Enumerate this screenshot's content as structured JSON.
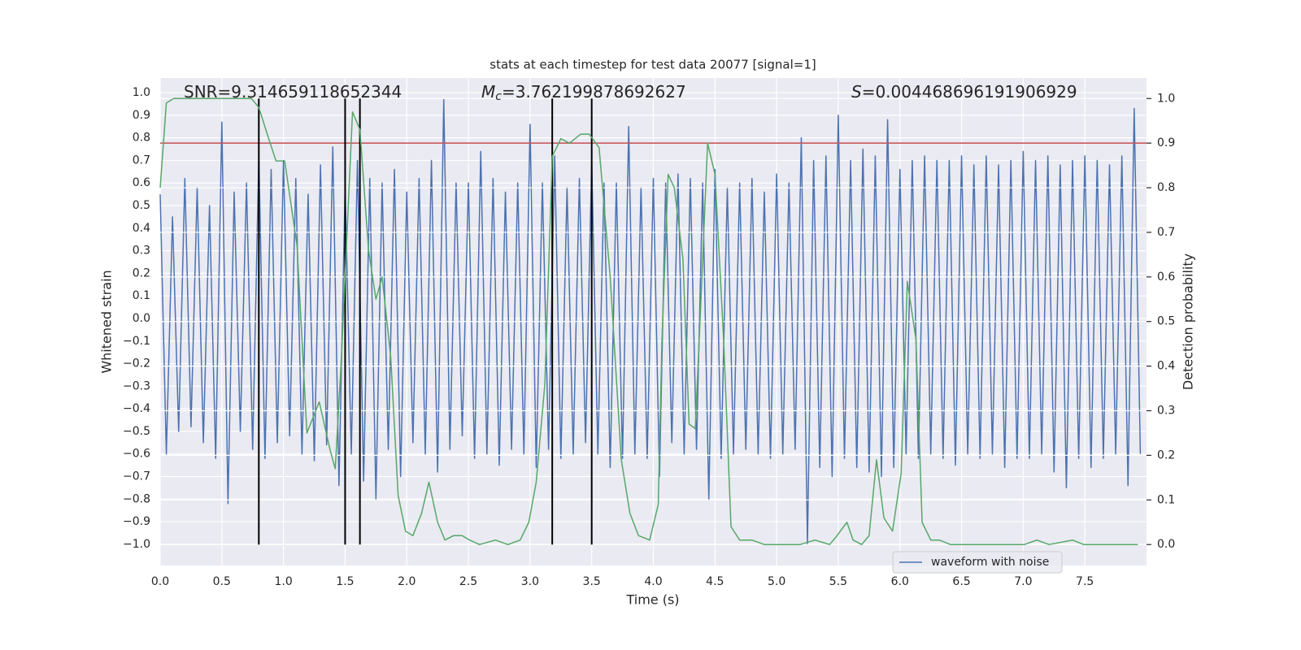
{
  "chart_data": {
    "type": "line",
    "title": "stats at each timestep for test data 20077 [signal=1]",
    "xlabel": "Time (s)",
    "ylabel": "Whitened strain",
    "y2label": "Detection probability",
    "xlim": [
      0,
      8.0
    ],
    "ylim": [
      -1.094,
      1.065
    ],
    "y2lim": [
      -0.047,
      1.046
    ],
    "xticks": [
      {
        "value": 0,
        "label": "0.0"
      },
      {
        "value": 0.5,
        "label": "0.5"
      },
      {
        "value": 1,
        "label": "1.0"
      },
      {
        "value": 1.5,
        "label": "1.5"
      },
      {
        "value": 2,
        "label": "2.0"
      },
      {
        "value": 2.5,
        "label": "2.5"
      },
      {
        "value": 3,
        "label": "3.0"
      },
      {
        "value": 3.5,
        "label": "3.5"
      },
      {
        "value": 4,
        "label": "4.0"
      },
      {
        "value": 4.5,
        "label": "4.5"
      },
      {
        "value": 5,
        "label": "5.0"
      },
      {
        "value": 5.5,
        "label": "5.5"
      },
      {
        "value": 6,
        "label": "6.0"
      },
      {
        "value": 6.5,
        "label": "6.5"
      },
      {
        "value": 7,
        "label": "7.0"
      },
      {
        "value": 7.5,
        "label": "7.5"
      }
    ],
    "yticks": [
      {
        "value": -1,
        "label": "−1.0"
      },
      {
        "value": -0.9,
        "label": "−0.9"
      },
      {
        "value": -0.8,
        "label": "−0.8"
      },
      {
        "value": -0.7,
        "label": "−0.7"
      },
      {
        "value": -0.6,
        "label": "−0.6"
      },
      {
        "value": -0.5,
        "label": "−0.5"
      },
      {
        "value": -0.4,
        "label": "−0.4"
      },
      {
        "value": -0.3,
        "label": "−0.3"
      },
      {
        "value": -0.2,
        "label": "−0.2"
      },
      {
        "value": -0.1,
        "label": "−0.1"
      },
      {
        "value": 0,
        "label": "0.0"
      },
      {
        "value": 0.1,
        "label": "0.1"
      },
      {
        "value": 0.2,
        "label": "0.2"
      },
      {
        "value": 0.3,
        "label": "0.3"
      },
      {
        "value": 0.4,
        "label": "0.4"
      },
      {
        "value": 0.5,
        "label": "0.5"
      },
      {
        "value": 0.6,
        "label": "0.6"
      },
      {
        "value": 0.7,
        "label": "0.7"
      },
      {
        "value": 0.8,
        "label": "0.8"
      },
      {
        "value": 0.9,
        "label": "0.9"
      },
      {
        "value": 1,
        "label": "1.0"
      }
    ],
    "y2ticks": [
      {
        "value": 0,
        "label": "0.0"
      },
      {
        "value": 0.1,
        "label": "0.1"
      },
      {
        "value": 0.2,
        "label": "0.2"
      },
      {
        "value": 0.3,
        "label": "0.3"
      },
      {
        "value": 0.4,
        "label": "0.4"
      },
      {
        "value": 0.5,
        "label": "0.5"
      },
      {
        "value": 0.6,
        "label": "0.6"
      },
      {
        "value": 0.7,
        "label": "0.7"
      },
      {
        "value": 0.8,
        "label": "0.8"
      },
      {
        "value": 0.9,
        "label": "0.9"
      },
      {
        "value": 1,
        "label": "1.0"
      }
    ],
    "grid": true,
    "legend": "lower right",
    "annotations": [
      {
        "text": "SNR=9.314659118652344"
      },
      {
        "symbol": "M",
        "subscript": "c",
        "text": "=3.762199878692627"
      },
      {
        "symbol": "S",
        "text": "=0.004468696191906929"
      }
    ],
    "hlines": [
      {
        "y": 0.9,
        "axis": "y2",
        "color": "#c44e52"
      }
    ],
    "vlines": {
      "x": [
        0.8,
        1.5,
        1.62,
        3.18,
        3.5
      ],
      "color": "#000000"
    },
    "series": [
      {
        "name": "waveform with noise",
        "color": "#4c72b0",
        "x": [
          0,
          0.05,
          0.1,
          0.15,
          0.2,
          0.25,
          0.3,
          0.35,
          0.4,
          0.45,
          0.5,
          0.55,
          0.6,
          0.65,
          0.7,
          0.75,
          0.8,
          0.85,
          0.9,
          0.95,
          1,
          1.05,
          1.1,
          1.15,
          1.2,
          1.25,
          1.3,
          1.35,
          1.4,
          1.45,
          1.5,
          1.55,
          1.6,
          1.65,
          1.7,
          1.75,
          1.8,
          1.85,
          1.9,
          1.95,
          2,
          2.05,
          2.1,
          2.15,
          2.2,
          2.25,
          2.3,
          2.35,
          2.4,
          2.45,
          2.5,
          2.55,
          2.6,
          2.65,
          2.7,
          2.75,
          2.8,
          2.85,
          2.9,
          2.95,
          3,
          3.05,
          3.1,
          3.15,
          3.2,
          3.25,
          3.3,
          3.35,
          3.4,
          3.45,
          3.5,
          3.55,
          3.6,
          3.65,
          3.7,
          3.75,
          3.8,
          3.85,
          3.9,
          3.95,
          4,
          4.05,
          4.1,
          4.15,
          4.2,
          4.25,
          4.3,
          4.35,
          4.4,
          4.45,
          4.5,
          4.55,
          4.6,
          4.65,
          4.7,
          4.75,
          4.8,
          4.85,
          4.9,
          4.95,
          5,
          5.05,
          5.1,
          5.15,
          5.2,
          5.25,
          5.3,
          5.35,
          5.4,
          5.45,
          5.5,
          5.55,
          5.6,
          5.65,
          5.7,
          5.75,
          5.8,
          5.85,
          5.9,
          5.95,
          6,
          6.05,
          6.1,
          6.15,
          6.2,
          6.25,
          6.3,
          6.35,
          6.4,
          6.45,
          6.5,
          6.55,
          6.6,
          6.65,
          6.7,
          6.75,
          6.8,
          6.85,
          6.9,
          6.95,
          7,
          7.05,
          7.1,
          7.15,
          7.2,
          7.25,
          7.3,
          7.35,
          7.4,
          7.45,
          7.5,
          7.55,
          7.6,
          7.65,
          7.7,
          7.75,
          7.8,
          7.85,
          7.9,
          7.95
        ],
        "values": [
          0.55,
          -0.6,
          0.45,
          -0.5,
          0.62,
          -0.48,
          0.58,
          -0.55,
          0.5,
          -0.62,
          0.87,
          -0.82,
          0.56,
          -0.5,
          0.6,
          -0.58,
          0.72,
          -0.62,
          0.66,
          -0.55,
          0.7,
          -0.52,
          0.62,
          -0.6,
          0.55,
          -0.63,
          0.68,
          -0.56,
          0.76,
          -0.74,
          0.58,
          -0.6,
          0.7,
          -0.72,
          0.62,
          -0.8,
          0.6,
          -0.58,
          0.66,
          -0.7,
          0.56,
          -0.55,
          0.62,
          -0.6,
          0.7,
          -0.68,
          0.97,
          -0.58,
          0.6,
          -0.52,
          0.6,
          -0.62,
          0.74,
          -0.6,
          0.62,
          -0.65,
          0.56,
          -0.58,
          0.6,
          -0.6,
          0.86,
          -0.66,
          0.6,
          -0.58,
          0.72,
          -0.62,
          0.58,
          -0.6,
          0.62,
          -0.55,
          0.7,
          -0.6,
          0.6,
          -0.66,
          0.6,
          -0.62,
          0.85,
          -0.6,
          0.58,
          -0.62,
          0.62,
          -0.7,
          0.6,
          -0.55,
          0.64,
          -0.6,
          0.62,
          -0.58,
          0.6,
          -0.8,
          0.66,
          -0.62,
          0.58,
          -0.6,
          0.6,
          -0.58,
          0.62,
          -0.6,
          0.56,
          -0.62,
          0.64,
          -0.6,
          0.6,
          -0.58,
          0.8,
          -1.0,
          0.7,
          -0.66,
          0.72,
          -0.7,
          0.9,
          -0.62,
          0.7,
          -0.66,
          0.75,
          -0.68,
          0.72,
          -0.7,
          0.88,
          -0.66,
          0.66,
          -0.6,
          0.7,
          -0.62,
          0.72,
          -0.6,
          0.7,
          -0.62,
          0.7,
          -0.65,
          0.72,
          -0.6,
          0.68,
          -0.62,
          0.72,
          -0.6,
          0.68,
          -0.66,
          0.7,
          -0.62,
          0.74,
          -0.62,
          0.7,
          -0.6,
          0.72,
          -0.68,
          0.68,
          -0.75,
          0.7,
          -0.62,
          0.72,
          -0.66,
          0.7,
          -0.62,
          0.68,
          -0.6,
          0.72,
          -0.74,
          0.93,
          -0.6
        ]
      },
      {
        "color": "#55a868",
        "axis": "y2",
        "x": [
          0,
          0.05,
          0.11,
          0.68,
          0.74,
          0.8,
          0.88,
          0.94,
          1.01,
          1.11,
          1.19,
          1.29,
          1.38,
          1.42,
          1.47,
          1.56,
          1.62,
          1.69,
          1.75,
          1.8,
          1.87,
          1.93,
          1.99,
          2.05,
          2.12,
          2.18,
          2.25,
          2.31,
          2.38,
          2.45,
          2.51,
          2.59,
          2.72,
          2.82,
          2.92,
          2.99,
          3.05,
          3.12,
          3.18,
          3.25,
          3.32,
          3.41,
          3.48,
          3.56,
          3.65,
          3.74,
          3.81,
          3.88,
          3.97,
          4.04,
          4.07,
          4.12,
          4.17,
          4.24,
          4.29,
          4.34,
          4.38,
          4.44,
          4.5,
          4.57,
          4.63,
          4.7,
          4.8,
          4.9,
          5.19,
          5.31,
          5.43,
          5.49,
          5.57,
          5.62,
          5.69,
          5.75,
          5.81,
          5.87,
          5.94,
          6.01,
          6.06,
          6.13,
          6.18,
          6.25,
          6.32,
          6.41,
          7.01,
          7.11,
          7.21,
          7.4,
          7.49,
          7.93
        ],
        "values": [
          0.8,
          0.99,
          1.0,
          1.0,
          1.0,
          0.98,
          0.91,
          0.86,
          0.86,
          0.67,
          0.25,
          0.32,
          0.21,
          0.17,
          0.42,
          0.97,
          0.93,
          0.66,
          0.55,
          0.6,
          0.42,
          0.11,
          0.03,
          0.02,
          0.07,
          0.14,
          0.05,
          0.01,
          0.02,
          0.02,
          0.01,
          0.0,
          0.01,
          0.0,
          0.01,
          0.05,
          0.14,
          0.36,
          0.87,
          0.91,
          0.9,
          0.92,
          0.92,
          0.89,
          0.6,
          0.19,
          0.07,
          0.02,
          0.01,
          0.09,
          0.46,
          0.83,
          0.8,
          0.64,
          0.27,
          0.26,
          0.51,
          0.9,
          0.83,
          0.46,
          0.04,
          0.01,
          0.01,
          0.0,
          0.0,
          0.01,
          0.0,
          0.02,
          0.05,
          0.01,
          0.0,
          0.02,
          0.19,
          0.06,
          0.03,
          0.16,
          0.59,
          0.46,
          0.05,
          0.01,
          0.01,
          0.0,
          0.0,
          0.01,
          0.0,
          0.01,
          0.0,
          0.0
        ]
      }
    ]
  }
}
